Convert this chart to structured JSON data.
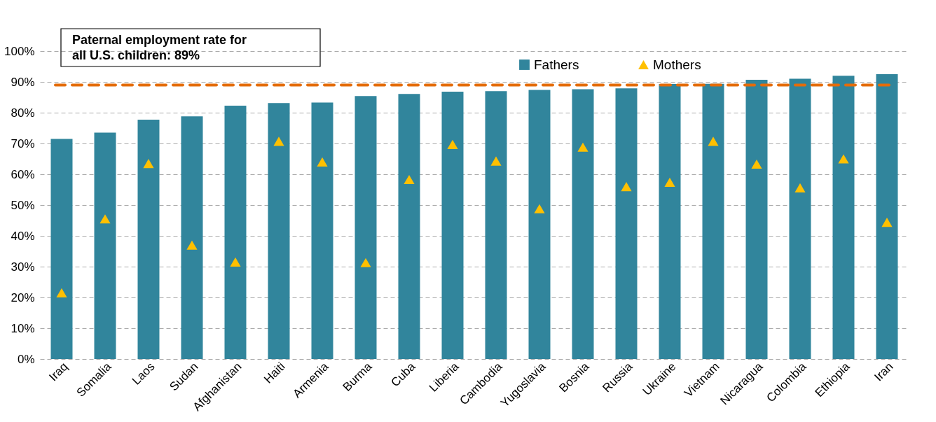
{
  "chart_data": {
    "type": "bar",
    "categories": [
      "Iraq",
      "Somalia",
      "Laos",
      "Sudan",
      "Afghanistan",
      "Haiti",
      "Armenia",
      "Burma",
      "Cuba",
      "Liberia",
      "Cambodia",
      "Yugoslavia",
      "Bosnia",
      "Russia",
      "Ukraine",
      "Vietnam",
      "Nicaragua",
      "Colombia",
      "Ethiopia",
      "Iran"
    ],
    "series": [
      {
        "name": "Fathers",
        "color": "#31859c",
        "values": [
          71.5,
          73.5,
          77.7,
          78.8,
          82.3,
          83.1,
          83.3,
          85.4,
          86.1,
          86.8,
          87.0,
          87.4,
          87.6,
          87.9,
          89.3,
          89.4,
          90.7,
          91.0,
          92.0,
          92.5
        ]
      },
      {
        "name": "Mothers",
        "type": "scatter",
        "marker": "triangle",
        "color": "#ffc000",
        "values": [
          21.5,
          45.5,
          63.5,
          37.0,
          31.5,
          70.7,
          64.0,
          31.3,
          58.3,
          69.7,
          64.3,
          48.8,
          68.8,
          56.0,
          57.4,
          70.7,
          63.3,
          55.6,
          65.0,
          44.4
        ]
      }
    ],
    "ylim": [
      0,
      100
    ],
    "yticks": [
      {
        "value": 0,
        "label": "0%"
      },
      {
        "value": 10,
        "label": "10%"
      },
      {
        "value": 20,
        "label": "20%"
      },
      {
        "value": 30,
        "label": "30%"
      },
      {
        "value": 40,
        "label": "40%"
      },
      {
        "value": 50,
        "label": "50%"
      },
      {
        "value": 60,
        "label": "60%"
      },
      {
        "value": 70,
        "label": "70%"
      },
      {
        "value": 80,
        "label": "80%"
      },
      {
        "value": 90,
        "label": "90%"
      },
      {
        "value": 100,
        "label": "100%"
      }
    ],
    "grid": "y",
    "legend": "top",
    "ref_lines": [
      {
        "axis": "y",
        "value": 89,
        "label": "Paternal employment rate for all U.S. children: 89%",
        "color": "#e46c0a",
        "line_style": "dashed"
      }
    ]
  }
}
